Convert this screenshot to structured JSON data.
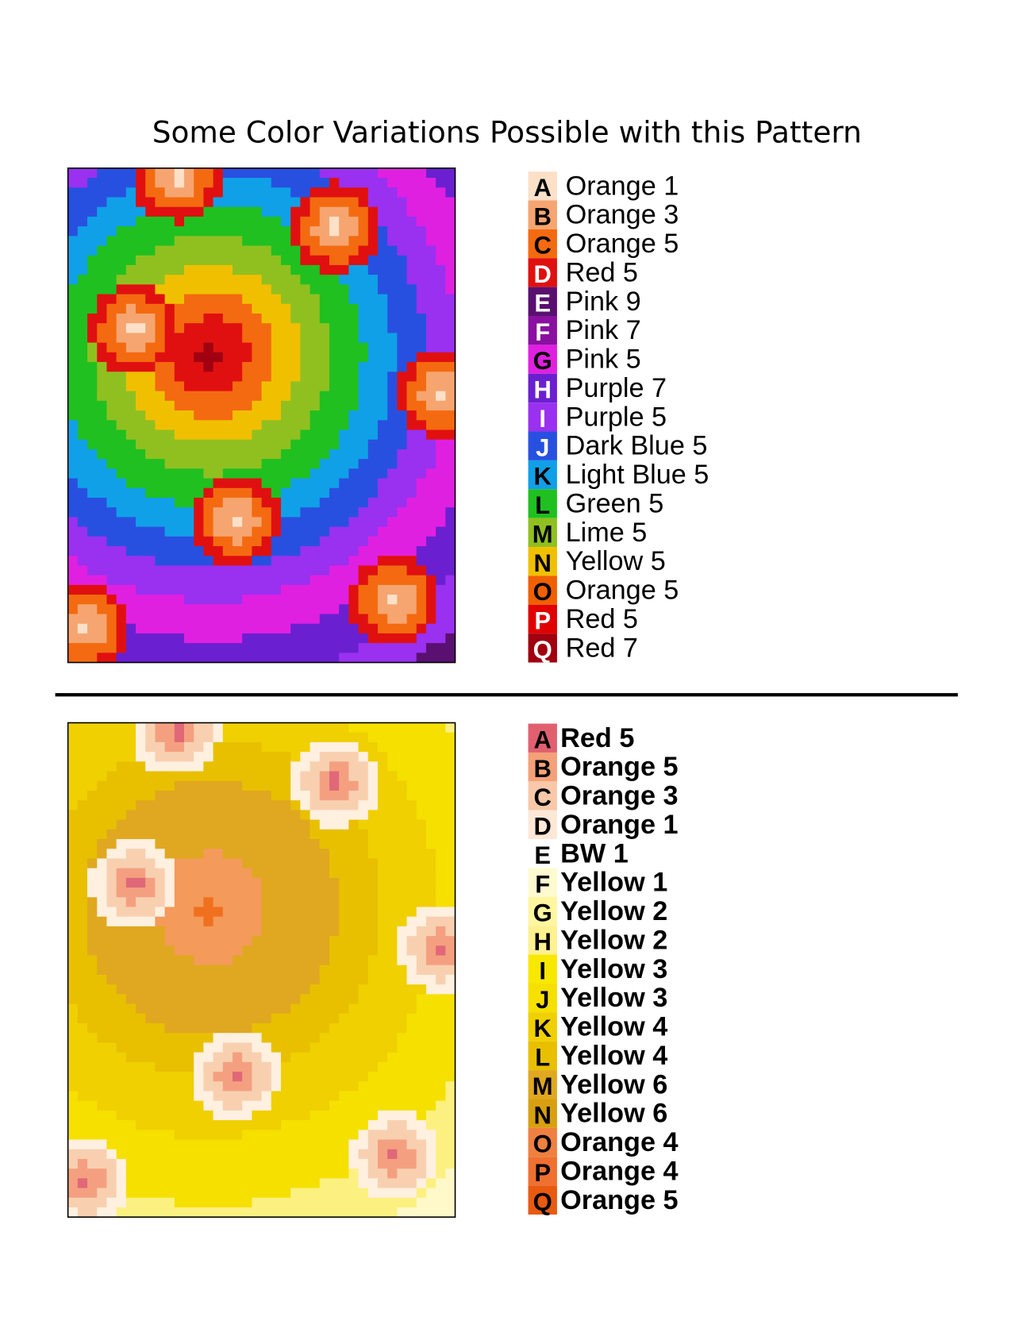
{
  "title": "Some Color Variations Possible with this Pattern",
  "variations": [
    {
      "legend": [
        {
          "letter": "A",
          "name": "Orange 1",
          "color": "#fde0c8"
        },
        {
          "letter": "B",
          "name": "Orange 3",
          "color": "#f6a570"
        },
        {
          "letter": "C",
          "name": "Orange 5",
          "color": "#f46a10"
        },
        {
          "letter": "D",
          "name": "Red 5",
          "color": "#e01010"
        },
        {
          "letter": "E",
          "name": "Pink 9",
          "color": "#5a1070"
        },
        {
          "letter": "F",
          "name": "Pink 7",
          "color": "#8a10a0"
        },
        {
          "letter": "G",
          "name": "Pink 5",
          "color": "#e020e0"
        },
        {
          "letter": "H",
          "name": "Purple 7",
          "color": "#6a20d0"
        },
        {
          "letter": "I",
          "name": "Purple 5",
          "color": "#9a30f0"
        },
        {
          "letter": "J",
          "name": "Dark Blue 5",
          "color": "#2850e0"
        },
        {
          "letter": "K",
          "name": "Light Blue 5",
          "color": "#10a0e8"
        },
        {
          "letter": "L",
          "name": "Green 5",
          "color": "#20c020"
        },
        {
          "letter": "M",
          "name": "Lime 5",
          "color": "#90c020"
        },
        {
          "letter": "N",
          "name": "Yellow 5",
          "color": "#f0c000"
        },
        {
          "letter": "O",
          "name": "Orange 5",
          "color": "#f06000"
        },
        {
          "letter": "P",
          "name": "Red 5",
          "color": "#e00000"
        },
        {
          "letter": "Q",
          "name": "Red 7",
          "color": "#a00010"
        }
      ]
    },
    {
      "legend": [
        {
          "letter": "A",
          "name": "Red 5",
          "color": "#e06070"
        },
        {
          "letter": "B",
          "name": "Orange 5",
          "color": "#f4a078"
        },
        {
          "letter": "C",
          "name": "Orange 3",
          "color": "#f8c8a8"
        },
        {
          "letter": "D",
          "name": "Orange 1",
          "color": "#fde8d8"
        },
        {
          "letter": "E",
          "name": "BW 1",
          "color": "#ffffff"
        },
        {
          "letter": "F",
          "name": "Yellow 1",
          "color": "#fffbd0"
        },
        {
          "letter": "G",
          "name": "Yellow 2",
          "color": "#fff6a0"
        },
        {
          "letter": "H",
          "name": "Yellow 2",
          "color": "#fff090"
        },
        {
          "letter": "I",
          "name": "Yellow 3",
          "color": "#f8e800"
        },
        {
          "letter": "J",
          "name": "Yellow 3",
          "color": "#f6e000"
        },
        {
          "letter": "K",
          "name": "Yellow 4",
          "color": "#f0d000"
        },
        {
          "letter": "L",
          "name": "Yellow 4",
          "color": "#e8c000"
        },
        {
          "letter": "M",
          "name": "Yellow 6",
          "color": "#e0a820"
        },
        {
          "letter": "N",
          "name": "Yellow 6",
          "color": "#d8a010"
        },
        {
          "letter": "O",
          "name": "Orange 4",
          "color": "#f08040"
        },
        {
          "letter": "P",
          "name": "Orange 4",
          "color": "#f07030"
        },
        {
          "letter": "Q",
          "name": "Orange 5",
          "color": "#e85a10"
        }
      ]
    }
  ]
}
